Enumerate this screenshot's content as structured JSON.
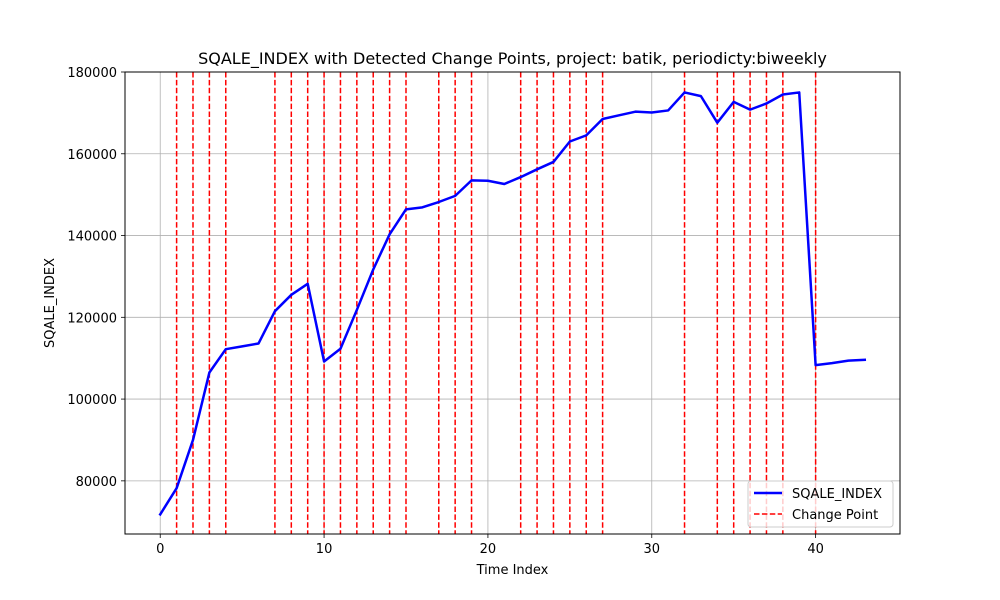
{
  "chart_data": {
    "type": "line",
    "title": "SQALE_INDEX with Detected Change Points, project: batik, periodicty:biweekly",
    "xlabel": "Time Index",
    "ylabel": "SQALE_INDEX",
    "xlim": [
      -2.15,
      45.15
    ],
    "ylim": [
      67000,
      180000
    ],
    "xticks": [
      0,
      10,
      20,
      30,
      40
    ],
    "yticks": [
      80000,
      100000,
      120000,
      140000,
      160000,
      180000
    ],
    "grid": true,
    "legend_position": "lower right",
    "series": [
      {
        "name": "SQALE_INDEX",
        "color": "#0000ff",
        "x": [
          0,
          1,
          2,
          3,
          4,
          5,
          6,
          7,
          8,
          9,
          10,
          11,
          12,
          13,
          14,
          15,
          16,
          17,
          18,
          19,
          20,
          21,
          22,
          23,
          24,
          25,
          26,
          27,
          28,
          29,
          30,
          31,
          32,
          33,
          34,
          35,
          36,
          37,
          38,
          39,
          40,
          41,
          42,
          43
        ],
        "values": [
          71800,
          78200,
          90000,
          106500,
          112200,
          112900,
          113600,
          121500,
          125500,
          128200,
          109200,
          112300,
          121800,
          131700,
          140300,
          146400,
          146900,
          148200,
          149700,
          153500,
          153400,
          152600,
          154300,
          156200,
          158000,
          163000,
          164500,
          168500,
          169400,
          170300,
          170100,
          170600,
          175000,
          174100,
          167600,
          172700,
          170800,
          172300,
          174500,
          175000,
          108300,
          108800,
          109400,
          109600
        ]
      }
    ],
    "change_points": {
      "name": "Change Point",
      "color": "#ff0000",
      "x": [
        1,
        2,
        3,
        4,
        7,
        8,
        9,
        10,
        11,
        12,
        13,
        14,
        15,
        17,
        18,
        19,
        22,
        23,
        24,
        25,
        26,
        27,
        32,
        34,
        35,
        36,
        37,
        38,
        40
      ]
    }
  },
  "legend": {
    "line_label": "SQALE_INDEX",
    "change_label": "Change Point"
  }
}
